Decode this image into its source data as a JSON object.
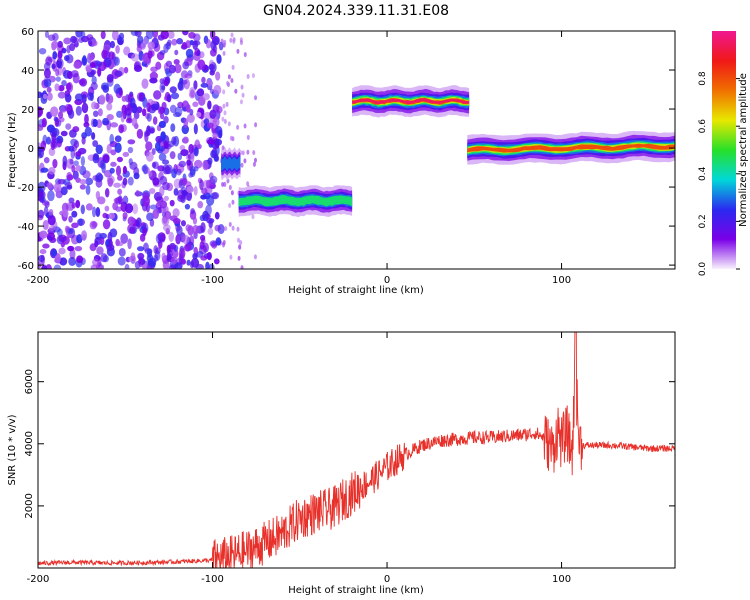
{
  "title": "GN04.2024.339.11.31.E08",
  "chart_data": [
    {
      "type": "heatmap",
      "xlabel": "Height of straight line (km)",
      "ylabel": "Frequency (Hz)",
      "xlim": [
        -200,
        165
      ],
      "ylim": [
        -62,
        60
      ],
      "xticks": [
        -200,
        -100,
        0,
        100
      ],
      "yticks": [
        -60,
        -40,
        -20,
        0,
        20,
        40,
        60
      ],
      "colorbar": {
        "label": "Normalized spectral amplitude",
        "range": [
          0,
          1
        ],
        "ticks": [
          "0.0",
          "0.2",
          "0.4",
          "0.6",
          "0.8"
        ],
        "colormap": [
          "#f8f0fc",
          "#7a00e8",
          "#2a2af0",
          "#00d8d8",
          "#28e028",
          "#e8e800",
          "#f07000",
          "#f01818",
          "#f01890"
        ]
      },
      "noise_region": {
        "x": [
          -200,
          -95
        ],
        "y": [
          -62,
          60
        ],
        "amplitude": 0.15
      },
      "segments": [
        {
          "x": [
            -95,
            -84
          ],
          "freq": [
            -8,
            -8
          ],
          "amplitude": 0.35
        },
        {
          "x": [
            -85,
            -20
          ],
          "freq": [
            -27,
            -27
          ],
          "amplitude": 0.45
        },
        {
          "x": [
            -20,
            47
          ],
          "freq": [
            24,
            24
          ],
          "amplitude": 0.95
        },
        {
          "x": [
            46,
            165
          ],
          "freq": [
            -1,
            1
          ],
          "amplitude": 0.85
        }
      ]
    },
    {
      "type": "line",
      "xlabel": "Height of straight line (km)",
      "ylabel": "SNR (10 * v/v)",
      "xlim": [
        -200,
        165
      ],
      "ylim": [
        0,
        7600
      ],
      "xticks": [
        -200,
        -100,
        0,
        100
      ],
      "yticks": [
        2000,
        4000,
        6000
      ],
      "color": "#e8302a",
      "x": [
        -200,
        -180,
        -160,
        -140,
        -120,
        -100,
        -90,
        -80,
        -70,
        -60,
        -50,
        -45,
        -40,
        -35,
        -30,
        -25,
        -20,
        -15,
        -10,
        -5,
        0,
        5,
        10,
        15,
        20,
        30,
        40,
        50,
        60,
        70,
        80,
        85,
        90,
        95,
        98,
        100,
        103,
        106,
        108,
        110,
        112,
        120,
        130,
        140,
        150,
        160,
        165
      ],
      "y": [
        150,
        180,
        160,
        170,
        200,
        250,
        350,
        550,
        800,
        1100,
        1600,
        1700,
        1800,
        1850,
        1950,
        2200,
        2400,
        2600,
        2800,
        3000,
        3250,
        3450,
        3650,
        3800,
        3950,
        4100,
        4150,
        4200,
        4200,
        4250,
        4300,
        4350,
        4200,
        3800,
        4500,
        4000,
        4400,
        3700,
        6200,
        4100,
        3950,
        3950,
        3950,
        3900,
        3850,
        3850,
        3850
      ]
    }
  ]
}
